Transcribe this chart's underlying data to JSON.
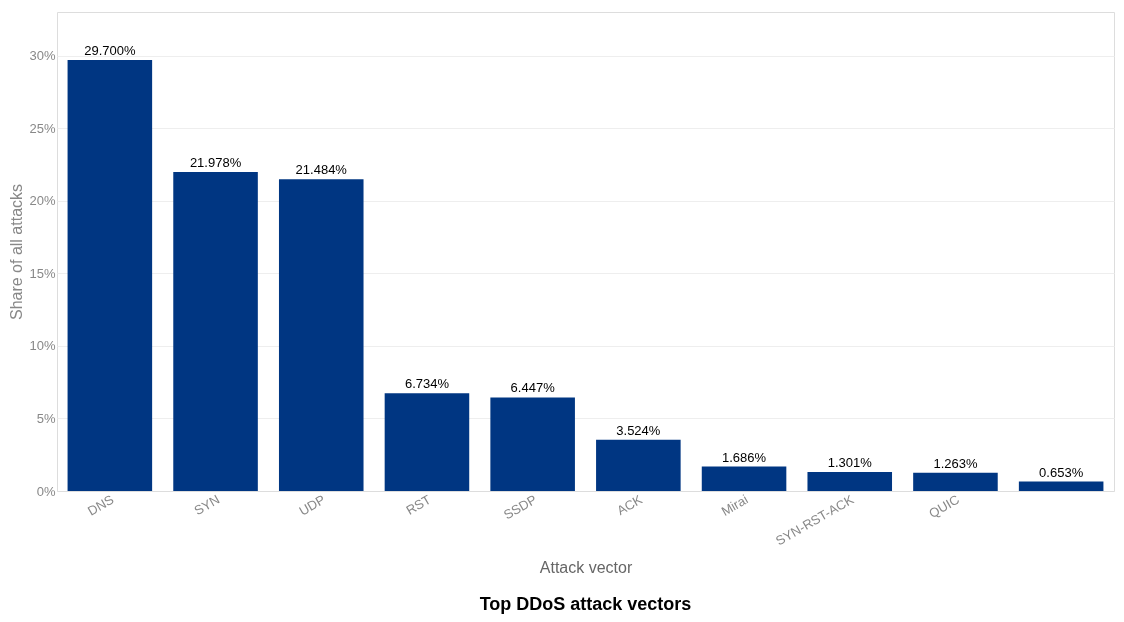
{
  "chart_data": {
    "type": "bar",
    "title": "Top DDoS attack vectors",
    "xlabel": "Attack vector",
    "ylabel": "Share of all attacks",
    "categories": [
      "DNS",
      "SYN",
      "UDP",
      "RST",
      "SSDP",
      "ACK",
      "Mirai",
      "SYN-RST-ACK",
      "QUIC",
      null
    ],
    "values": [
      29.7,
      21.978,
      21.484,
      6.734,
      6.447,
      3.524,
      1.686,
      1.301,
      1.263,
      0.653
    ],
    "value_labels": [
      "29.700%",
      "21.978%",
      "21.484%",
      "6.734%",
      "6.447%",
      "3.524%",
      "1.686%",
      "1.301%",
      "1.263%",
      "0.653%"
    ],
    "color": "#003682",
    "ylim": [
      0,
      33
    ],
    "yticks": [
      {
        "value": 0,
        "label": "0%"
      },
      {
        "value": 5,
        "label": "5%"
      },
      {
        "value": 10,
        "label": "10%"
      },
      {
        "value": 15,
        "label": "15%"
      },
      {
        "value": 20,
        "label": "20%"
      },
      {
        "value": 25,
        "label": "25%"
      },
      {
        "value": 30,
        "label": "30%"
      }
    ],
    "grid": "y"
  }
}
